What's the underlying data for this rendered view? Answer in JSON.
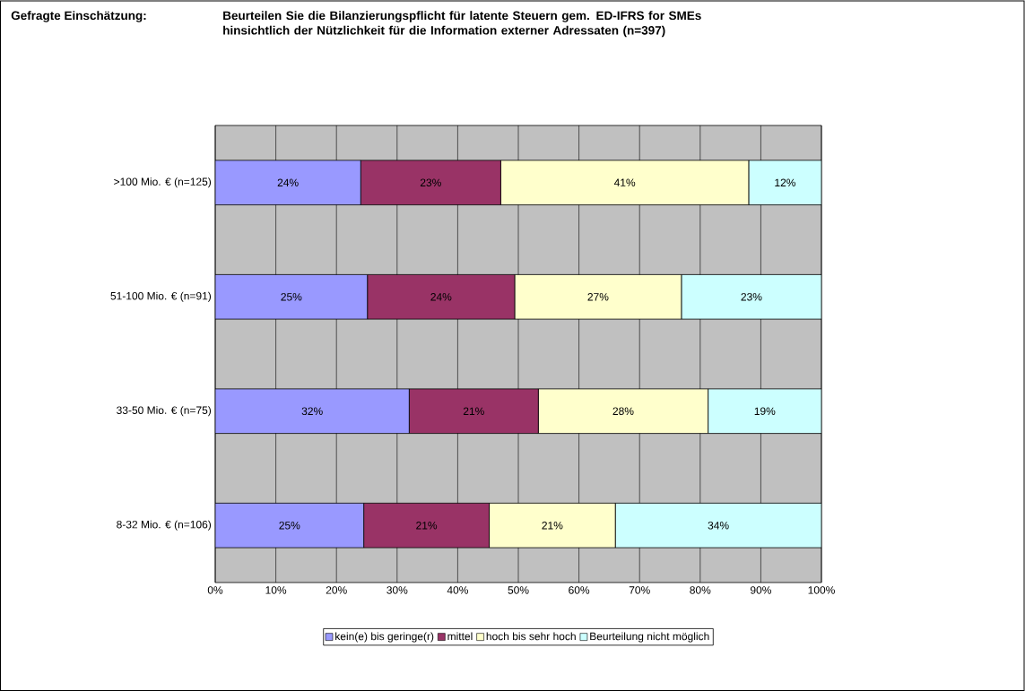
{
  "chart_data": {
    "type": "bar",
    "orientation": "horizontal",
    "stacked": true,
    "title": "Gefragte Einschätzung:",
    "subtitle": "Beurteilen Sie die Bilanzierungspflicht für latente Steuern gem. ED-IFRS for SMEs hinsichtlich der Nützlichkeit für die Information externer Adressaten (n=397)",
    "categories": [
      ">100 Mio. € (n=125)",
      "51-100 Mio. € (n=91)",
      "33-50 Mio. € (n=75)",
      "8-32 Mio. € (n=106)"
    ],
    "series": [
      {
        "name": "kein(e) bis geringe(r)",
        "color": "#9999ff",
        "values": [
          24.0,
          25.1,
          32.0,
          24.5
        ],
        "value_labels": [
          "24%",
          "25%",
          "32%",
          "25%"
        ]
      },
      {
        "name": "mittel",
        "color": "#993366",
        "values": [
          23.1,
          24.3,
          21.3,
          20.7
        ],
        "value_labels": [
          "23%",
          "24%",
          "21%",
          "21%"
        ]
      },
      {
        "name": "hoch bis sehr hoch",
        "color": "#ffffcc",
        "values": [
          40.9,
          27.5,
          28.0,
          20.8
        ],
        "value_labels": [
          "41%",
          "27%",
          "28%",
          "21%"
        ]
      },
      {
        "name": "Beurteilung nicht möglich",
        "color": "#ccffff",
        "values": [
          12.0,
          23.1,
          18.7,
          34.0
        ],
        "value_labels": [
          "12%",
          "23%",
          "19%",
          "34%"
        ]
      }
    ],
    "xlim": [
      0,
      100
    ],
    "xticks": [
      {
        "value": 0,
        "label": "0%"
      },
      {
        "value": 10,
        "label": "10%"
      },
      {
        "value": 20,
        "label": "20%"
      },
      {
        "value": 30,
        "label": "30%"
      },
      {
        "value": 40,
        "label": "40%"
      },
      {
        "value": 50,
        "label": "50%"
      },
      {
        "value": 60,
        "label": "60%"
      },
      {
        "value": 70,
        "label": "70%"
      },
      {
        "value": 80,
        "label": "80%"
      },
      {
        "value": 90,
        "label": "90%"
      },
      {
        "value": 100,
        "label": "100%"
      }
    ],
    "grid": "x",
    "legend": "bottom"
  }
}
